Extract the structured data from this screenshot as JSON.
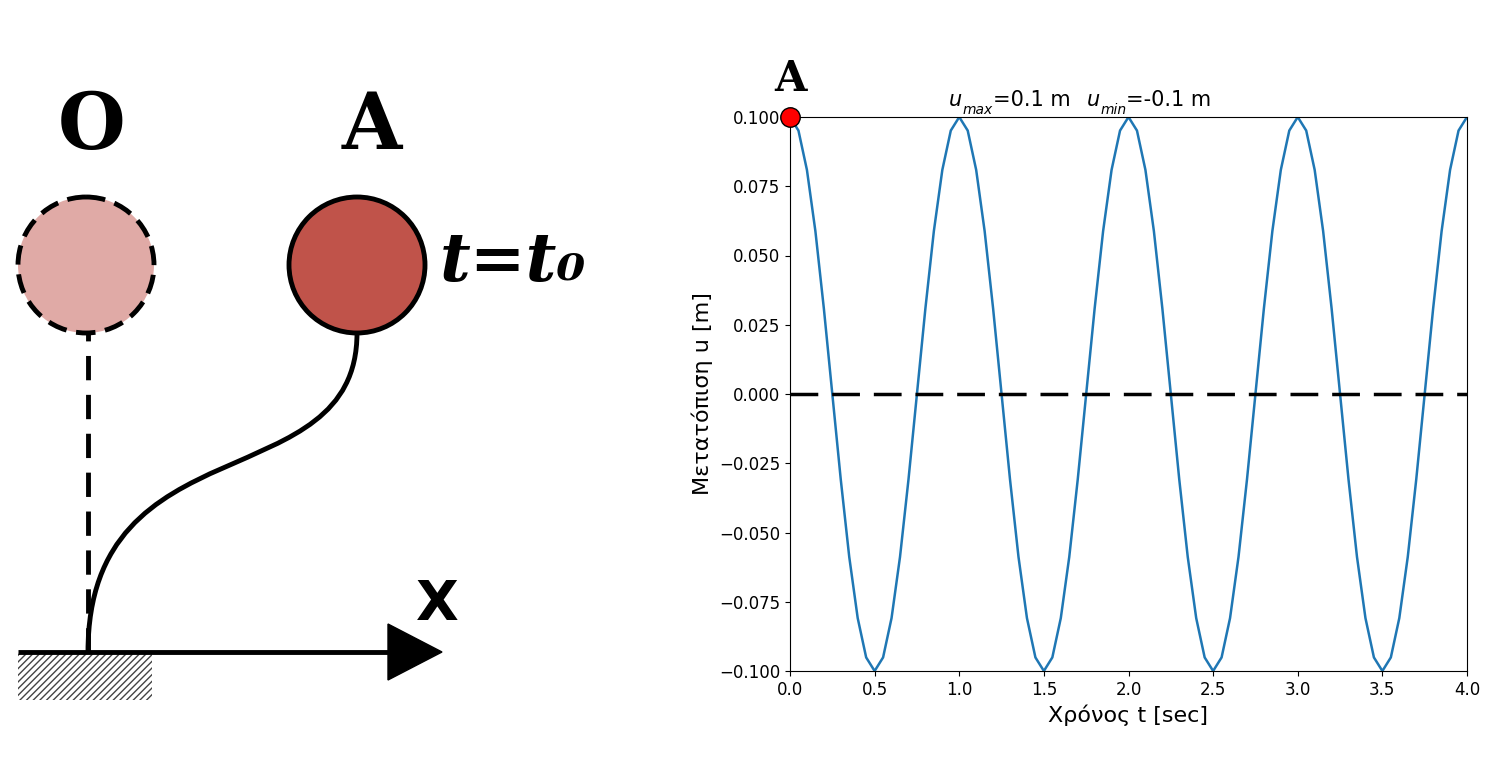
{
  "chart_data": {
    "type": "line",
    "x_label": "Χρόνος t [sec]",
    "y_label": "Μετατόπιση u [m]",
    "extremes": [
      {
        "symbol": "u",
        "subscript": "max",
        "text": "=0.1 m"
      },
      {
        "symbol": "u",
        "subscript": "min",
        "text": "=-0.1 m"
      }
    ],
    "x": [
      0.0,
      0.05,
      0.1,
      0.15,
      0.2,
      0.25,
      0.3,
      0.35,
      0.4,
      0.45,
      0.5,
      0.55,
      0.6,
      0.65,
      0.7,
      0.75,
      0.8,
      0.85,
      0.9,
      0.95,
      1.0,
      1.05,
      1.1,
      1.15,
      1.2,
      1.25,
      1.3,
      1.35,
      1.4,
      1.45,
      1.5,
      1.55,
      1.6,
      1.65,
      1.7,
      1.75,
      1.8,
      1.85,
      1.9,
      1.95,
      2.0,
      2.05,
      2.1,
      2.15,
      2.2,
      2.25,
      2.3,
      2.35,
      2.4,
      2.45,
      2.5,
      2.55,
      2.6,
      2.65,
      2.7,
      2.75,
      2.8,
      2.85,
      2.9,
      2.95,
      3.0,
      3.05,
      3.1,
      3.15,
      3.2,
      3.25,
      3.3,
      3.35,
      3.4,
      3.45,
      3.5,
      3.55,
      3.6,
      3.65,
      3.7,
      3.75,
      3.8,
      3.85,
      3.9,
      3.95,
      4.0
    ],
    "series": [
      {
        "color": "#1f77b4",
        "line_style": "solid",
        "values": [
          0.1,
          0.0951,
          0.0809,
          0.0588,
          0.0309,
          0.0,
          -0.0309,
          -0.0588,
          -0.0809,
          -0.0951,
          -0.1,
          -0.0951,
          -0.0809,
          -0.0588,
          -0.0309,
          0.0,
          0.0309,
          0.0588,
          0.0809,
          0.0951,
          0.1,
          0.0951,
          0.0809,
          0.0588,
          0.0309,
          0.0,
          -0.0309,
          -0.0588,
          -0.0809,
          -0.0951,
          -0.1,
          -0.0951,
          -0.0809,
          -0.0588,
          -0.0309,
          0.0,
          0.0309,
          0.0588,
          0.0809,
          0.0951,
          0.1,
          0.0951,
          0.0809,
          0.0588,
          0.0309,
          0.0,
          -0.0309,
          -0.0588,
          -0.0809,
          -0.0951,
          -0.1,
          -0.0951,
          -0.0809,
          -0.0588,
          -0.0309,
          0.0,
          0.0309,
          0.0588,
          0.0809,
          0.0951,
          0.1,
          0.0951,
          0.0809,
          0.0588,
          0.0309,
          0.0,
          -0.0309,
          -0.0588,
          -0.0809,
          -0.0951,
          -0.1,
          -0.0951,
          -0.0809,
          -0.0588,
          -0.0309,
          0.0,
          0.0309,
          0.0588,
          0.0809,
          0.0951,
          0.1
        ]
      }
    ],
    "reference_line": {
      "value": 0.0,
      "color": "#000000",
      "line_style": "dashed"
    },
    "annotations": [
      {
        "text": "A",
        "x": 0.0,
        "y": 0.1,
        "color": "#ff0000"
      }
    ],
    "xlim": [
      0.0,
      4.0
    ],
    "ylim": [
      -0.1,
      0.1
    ],
    "xticks": [
      {
        "value": 0.0,
        "label": "0.0"
      },
      {
        "value": 0.5,
        "label": "0.5"
      },
      {
        "value": 1.0,
        "label": "1.0"
      },
      {
        "value": 1.5,
        "label": "1.5"
      },
      {
        "value": 2.0,
        "label": "2.0"
      },
      {
        "value": 2.5,
        "label": "2.5"
      },
      {
        "value": 3.0,
        "label": "3.0"
      },
      {
        "value": 3.5,
        "label": "3.5"
      },
      {
        "value": 4.0,
        "label": "4.0"
      }
    ],
    "yticks": [
      {
        "value": -0.1,
        "label": "−0.100"
      },
      {
        "value": -0.075,
        "label": "−0.075"
      },
      {
        "value": -0.05,
        "label": "−0.050"
      },
      {
        "value": -0.025,
        "label": "−0.025"
      },
      {
        "value": 0.0,
        "label": "0.000"
      },
      {
        "value": 0.025,
        "label": "0.025"
      },
      {
        "value": 0.05,
        "label": "0.050"
      },
      {
        "value": 0.075,
        "label": "0.075"
      },
      {
        "value": 0.1,
        "label": "0.100"
      }
    ],
    "grid": false
  },
  "diagram": {
    "fixed_point": "O",
    "moving_point": "A",
    "time_label": "t=t₀",
    "axis_label": "X"
  }
}
